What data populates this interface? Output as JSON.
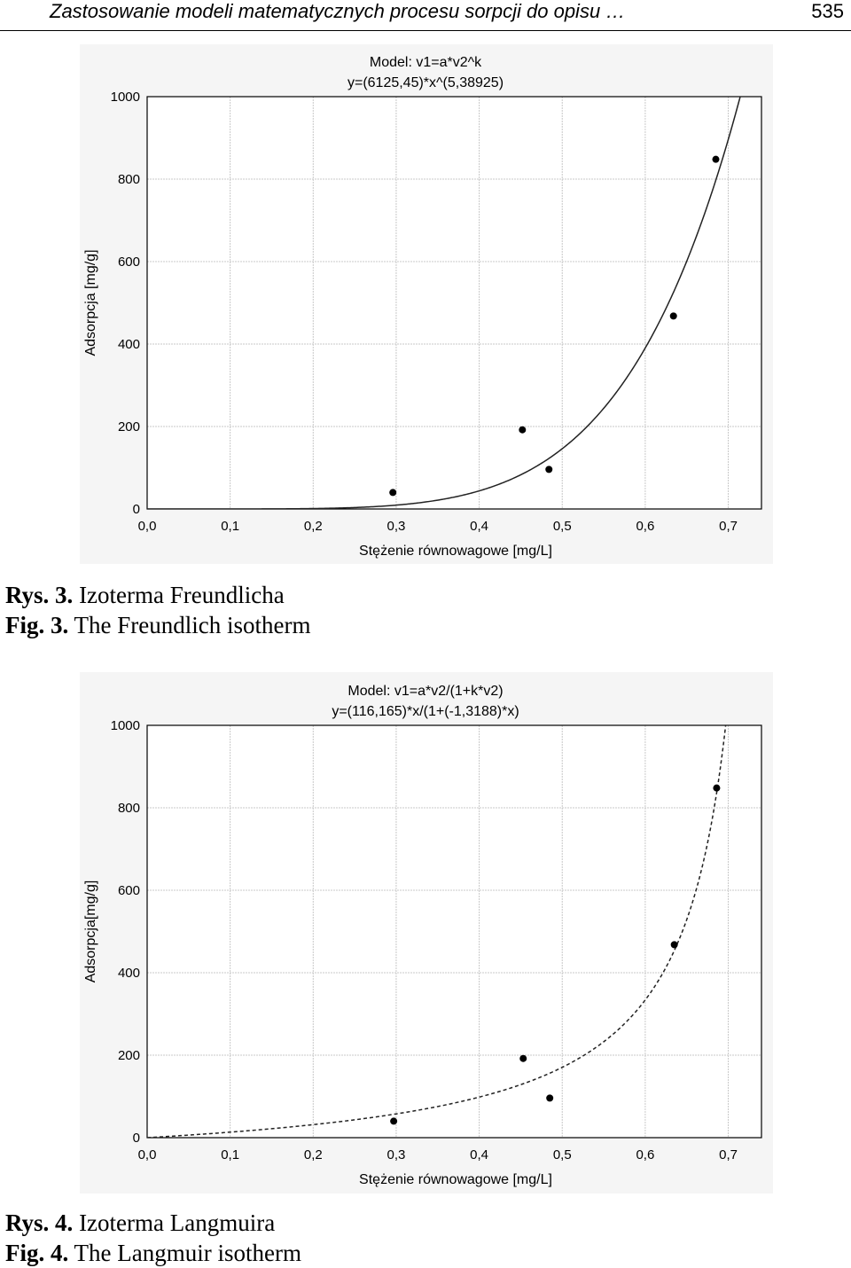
{
  "header": {
    "title": "Zastosowanie modeli matematycznych procesu sorpcji do opisu …",
    "page_number": "535"
  },
  "figures": [
    {
      "caption_pl_label": "Rys. 3.",
      "caption_pl_text": "Izoterma Freundlicha",
      "caption_en_label": "Fig. 3.",
      "caption_en_text": "The Freundlich isotherm"
    },
    {
      "caption_pl_label": "Rys. 4.",
      "caption_pl_text": "Izoterma Langmuira",
      "caption_en_label": "Fig. 4.",
      "caption_en_text": "The Langmuir isotherm"
    }
  ],
  "chart_data": [
    {
      "type": "scatter",
      "title": "Model: v1=a*v2^k",
      "subtitle": "y=(6125,45)*x^(5,38925)",
      "xlabel": "Stężenie równowagowe [mg/L]",
      "ylabel": "Adsorpcja [mg/g]",
      "xlim": [
        0,
        0.74
      ],
      "ylim": [
        0,
        1000
      ],
      "xticks": [
        "0,0",
        "0,1",
        "0,2",
        "0,3",
        "0,4",
        "0,5",
        "0,6",
        "0,7"
      ],
      "yticks": [
        "0",
        "200",
        "400",
        "600",
        "800",
        "1000"
      ],
      "grid": true,
      "points": [
        {
          "x": 0.296,
          "y": 40
        },
        {
          "x": 0.452,
          "y": 192
        },
        {
          "x": 0.484,
          "y": 96
        },
        {
          "x": 0.634,
          "y": 468
        },
        {
          "x": 0.685,
          "y": 848
        }
      ],
      "fit": {
        "model": "power",
        "a": 6125.45,
        "k": 5.38925,
        "line_style": "solid"
      }
    },
    {
      "type": "scatter",
      "title": "Model: v1=a*v2/(1+k*v2)",
      "subtitle": "y=(116,165)*x/(1+(-1,3188)*x)",
      "xlabel": "Stężenie równowagowe [mg/L]",
      "ylabel": "Adsorpcja[mg/g]",
      "xlim": [
        0,
        0.74
      ],
      "ylim": [
        0,
        1000
      ],
      "xticks": [
        "0,0",
        "0,1",
        "0,2",
        "0,3",
        "0,4",
        "0,5",
        "0,6",
        "0,7"
      ],
      "yticks": [
        "0",
        "200",
        "400",
        "600",
        "800",
        "1000"
      ],
      "grid": true,
      "points": [
        {
          "x": 0.297,
          "y": 40
        },
        {
          "x": 0.453,
          "y": 192
        },
        {
          "x": 0.485,
          "y": 96
        },
        {
          "x": 0.635,
          "y": 468
        },
        {
          "x": 0.686,
          "y": 848
        }
      ],
      "fit": {
        "model": "langmuir",
        "a": 116.165,
        "k": -1.3188,
        "line_style": "dashed"
      }
    }
  ]
}
